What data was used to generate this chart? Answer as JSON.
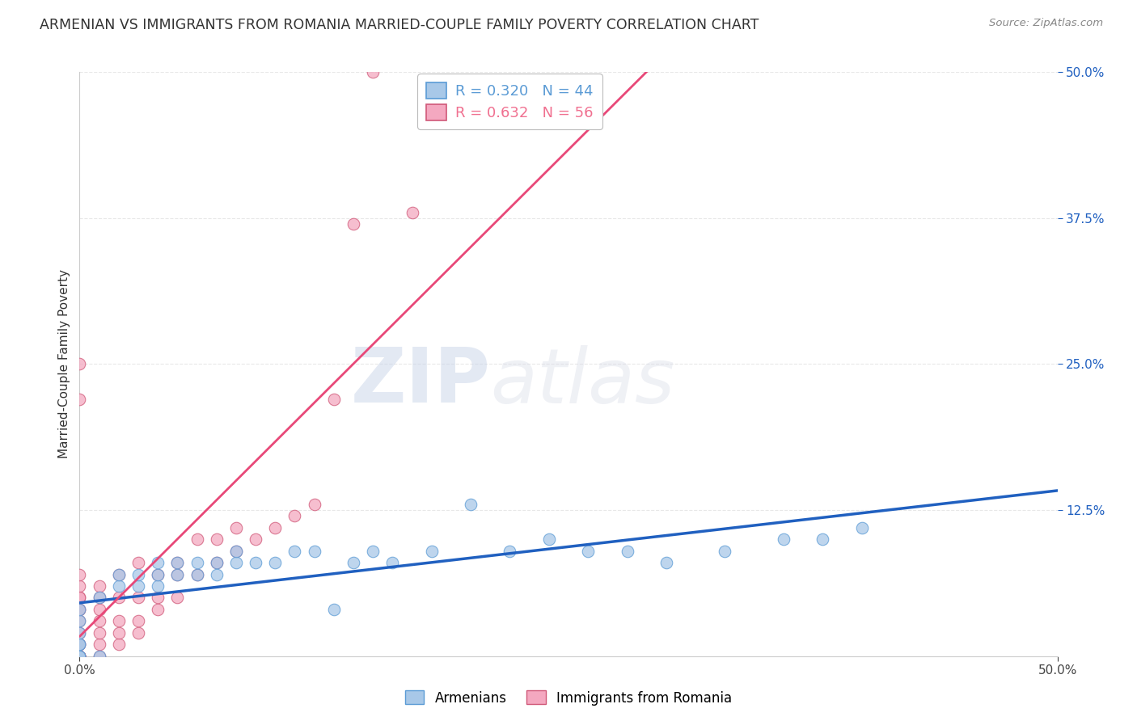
{
  "title": "ARMENIAN VS IMMIGRANTS FROM ROMANIA MARRIED-COUPLE FAMILY POVERTY CORRELATION CHART",
  "source": "Source: ZipAtlas.com",
  "ylabel": "Married-Couple Family Poverty",
  "xlim": [
    0.0,
    0.5
  ],
  "ylim": [
    0.0,
    0.5
  ],
  "xtick_labels": [
    "0.0%",
    "50.0%"
  ],
  "xtick_positions": [
    0.0,
    0.5
  ],
  "ytick_labels": [
    "12.5%",
    "25.0%",
    "37.5%",
    "50.0%"
  ],
  "ytick_positions": [
    0.125,
    0.25,
    0.375,
    0.5
  ],
  "legend_entries": [
    {
      "label": "R = 0.320   N = 44",
      "color": "#5b9bd5"
    },
    {
      "label": "R = 0.632   N = 56",
      "color": "#f07090"
    }
  ],
  "legend_labels_bottom": [
    "Armenians",
    "Immigrants from Romania"
  ],
  "series_armenian": {
    "color": "#a8c8e8",
    "edge_color": "#5b9bd5",
    "trend_color": "#2060c0",
    "R": 0.32,
    "N": 44,
    "x": [
      0.0,
      0.0,
      0.0,
      0.0,
      0.0,
      0.0,
      0.0,
      0.0,
      0.01,
      0.01,
      0.02,
      0.02,
      0.03,
      0.03,
      0.04,
      0.04,
      0.04,
      0.05,
      0.05,
      0.06,
      0.06,
      0.07,
      0.07,
      0.08,
      0.08,
      0.09,
      0.1,
      0.11,
      0.12,
      0.13,
      0.14,
      0.15,
      0.16,
      0.18,
      0.2,
      0.22,
      0.24,
      0.26,
      0.28,
      0.3,
      0.33,
      0.36,
      0.38,
      0.4
    ],
    "y": [
      0.0,
      0.0,
      0.0,
      0.01,
      0.01,
      0.02,
      0.03,
      0.04,
      0.0,
      0.05,
      0.06,
      0.07,
      0.06,
      0.07,
      0.06,
      0.07,
      0.08,
      0.07,
      0.08,
      0.07,
      0.08,
      0.07,
      0.08,
      0.08,
      0.09,
      0.08,
      0.08,
      0.09,
      0.09,
      0.04,
      0.08,
      0.09,
      0.08,
      0.09,
      0.13,
      0.09,
      0.1,
      0.09,
      0.09,
      0.08,
      0.09,
      0.1,
      0.1,
      0.11
    ]
  },
  "series_romania": {
    "color": "#f4a8c0",
    "edge_color": "#d05878",
    "trend_color": "#e84878",
    "R": 0.632,
    "N": 56,
    "x": [
      0.0,
      0.0,
      0.0,
      0.0,
      0.0,
      0.0,
      0.0,
      0.0,
      0.0,
      0.0,
      0.0,
      0.0,
      0.0,
      0.0,
      0.0,
      0.0,
      0.0,
      0.0,
      0.0,
      0.0,
      0.01,
      0.01,
      0.01,
      0.01,
      0.01,
      0.01,
      0.01,
      0.02,
      0.02,
      0.02,
      0.02,
      0.02,
      0.03,
      0.03,
      0.03,
      0.03,
      0.04,
      0.04,
      0.04,
      0.05,
      0.05,
      0.05,
      0.06,
      0.06,
      0.07,
      0.07,
      0.08,
      0.08,
      0.09,
      0.1,
      0.11,
      0.12,
      0.13,
      0.14,
      0.15,
      0.17
    ],
    "y": [
      0.0,
      0.0,
      0.0,
      0.0,
      0.0,
      0.0,
      0.0,
      0.0,
      0.01,
      0.01,
      0.02,
      0.03,
      0.04,
      0.04,
      0.05,
      0.05,
      0.06,
      0.07,
      0.22,
      0.25,
      0.0,
      0.01,
      0.02,
      0.03,
      0.04,
      0.05,
      0.06,
      0.01,
      0.02,
      0.03,
      0.05,
      0.07,
      0.02,
      0.03,
      0.05,
      0.08,
      0.04,
      0.05,
      0.07,
      0.05,
      0.07,
      0.08,
      0.07,
      0.1,
      0.08,
      0.1,
      0.09,
      0.11,
      0.1,
      0.11,
      0.12,
      0.13,
      0.22,
      0.37,
      0.5,
      0.38
    ]
  },
  "watermark_zip": "ZIP",
  "watermark_atlas": "atlas",
  "background_color": "#ffffff",
  "grid_color": "#e8e8e8",
  "title_fontsize": 12.5,
  "axis_label_fontsize": 11,
  "tick_fontsize": 11,
  "legend_fontsize": 13
}
